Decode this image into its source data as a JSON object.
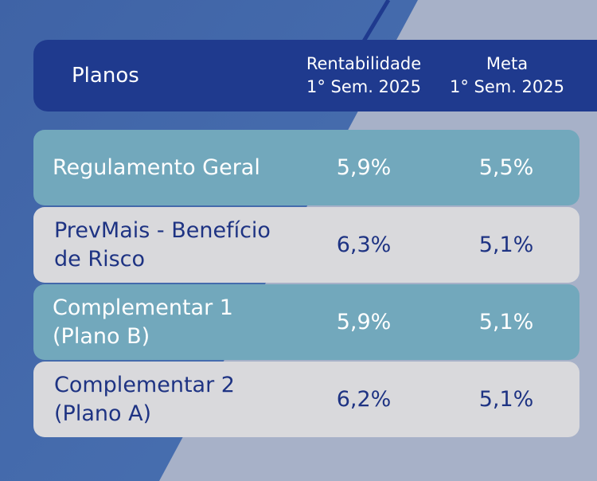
{
  "table": {
    "header": {
      "plan": "Planos",
      "return": [
        "Rentabilidade",
        "1° Sem. 2025"
      ],
      "target": [
        "Meta",
        "1° Sem. 2025"
      ]
    },
    "rows": [
      {
        "name": [
          "Regulamento Geral"
        ],
        "return": "5,9%",
        "target": "5,5%"
      },
      {
        "name": [
          "PrevMais - Benefício",
          "de Risco"
        ],
        "return": "6,3%",
        "target": "5,1%"
      },
      {
        "name": [
          "Complementar 1",
          "(Plano B)"
        ],
        "return": "5,9%",
        "target": "5,1%"
      },
      {
        "name": [
          "Complementar 2",
          "(Plano A)"
        ],
        "return": "6,2%",
        "target": "5,1%"
      }
    ]
  }
}
